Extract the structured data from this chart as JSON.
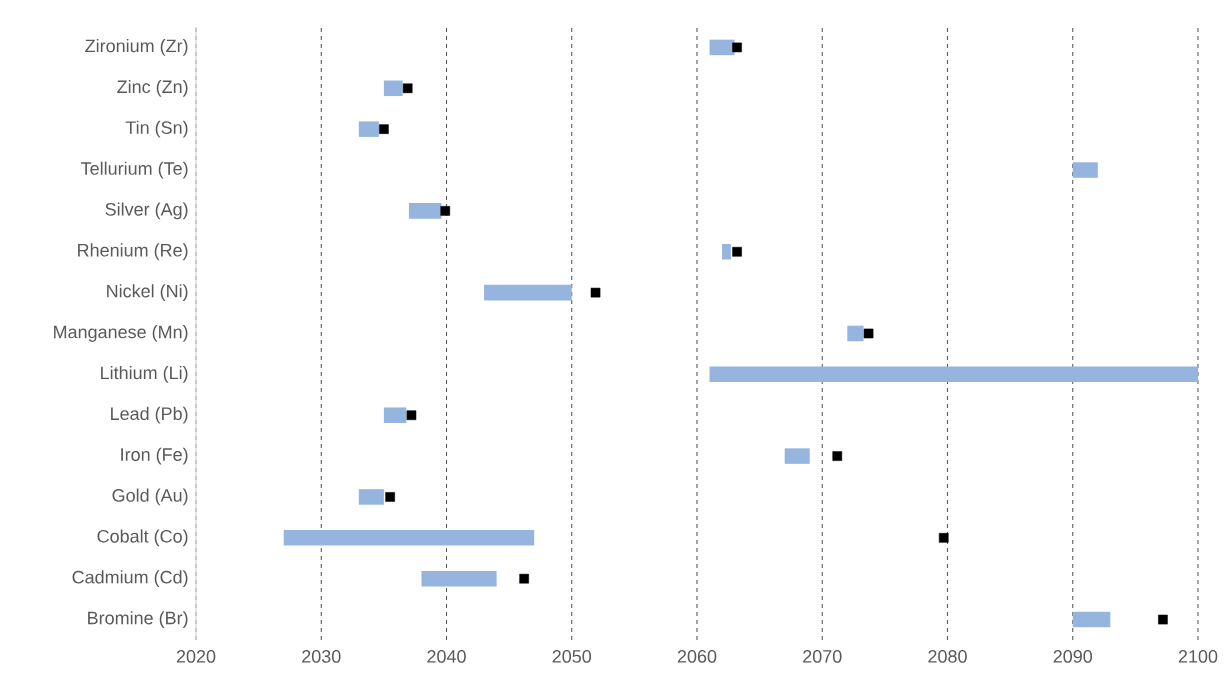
{
  "chart_data": {
    "type": "bar",
    "orientation": "horizontal",
    "categories": [
      "Zironium (Zr)",
      "Zinc (Zn)",
      "Tin (Sn)",
      "Tellurium (Te)",
      "Silver (Ag)",
      "Rhenium (Re)",
      "Nickel (Ni)",
      "Manganese (Mn)",
      "Lithium (Li)",
      "Lead (Pb)",
      "Iron (Fe)",
      "Gold (Au)",
      "Cobalt (Co)",
      "Cadmium (Cd)",
      "Bromine (Br)"
    ],
    "series": [
      {
        "color": "#95b5df",
        "base": [
          2061,
          2035,
          2033,
          2090,
          2037,
          2062,
          2043,
          2072,
          2061,
          2035,
          2067,
          2033,
          2027,
          2038,
          2090
        ],
        "values": [
          2,
          1.5,
          1.6,
          2,
          2.6,
          0.7,
          7,
          1.3,
          39,
          1.8,
          2,
          2,
          20,
          6,
          3
        ]
      },
      {
        "type": "scatter",
        "color": "#000000",
        "marker": "square",
        "values": [
          2063.2,
          2036.9,
          2035,
          null,
          2039.9,
          2063.2,
          2051.9,
          2073.7,
          null,
          2037.2,
          2071.2,
          2035.5,
          2079.7,
          2046.2,
          2097.2
        ]
      }
    ],
    "xlim": [
      2020,
      2100
    ],
    "xticks": [
      2020,
      2030,
      2040,
      2050,
      2060,
      2070,
      2080,
      2090,
      2100
    ],
    "grid": "x",
    "line_style": "dashed"
  }
}
